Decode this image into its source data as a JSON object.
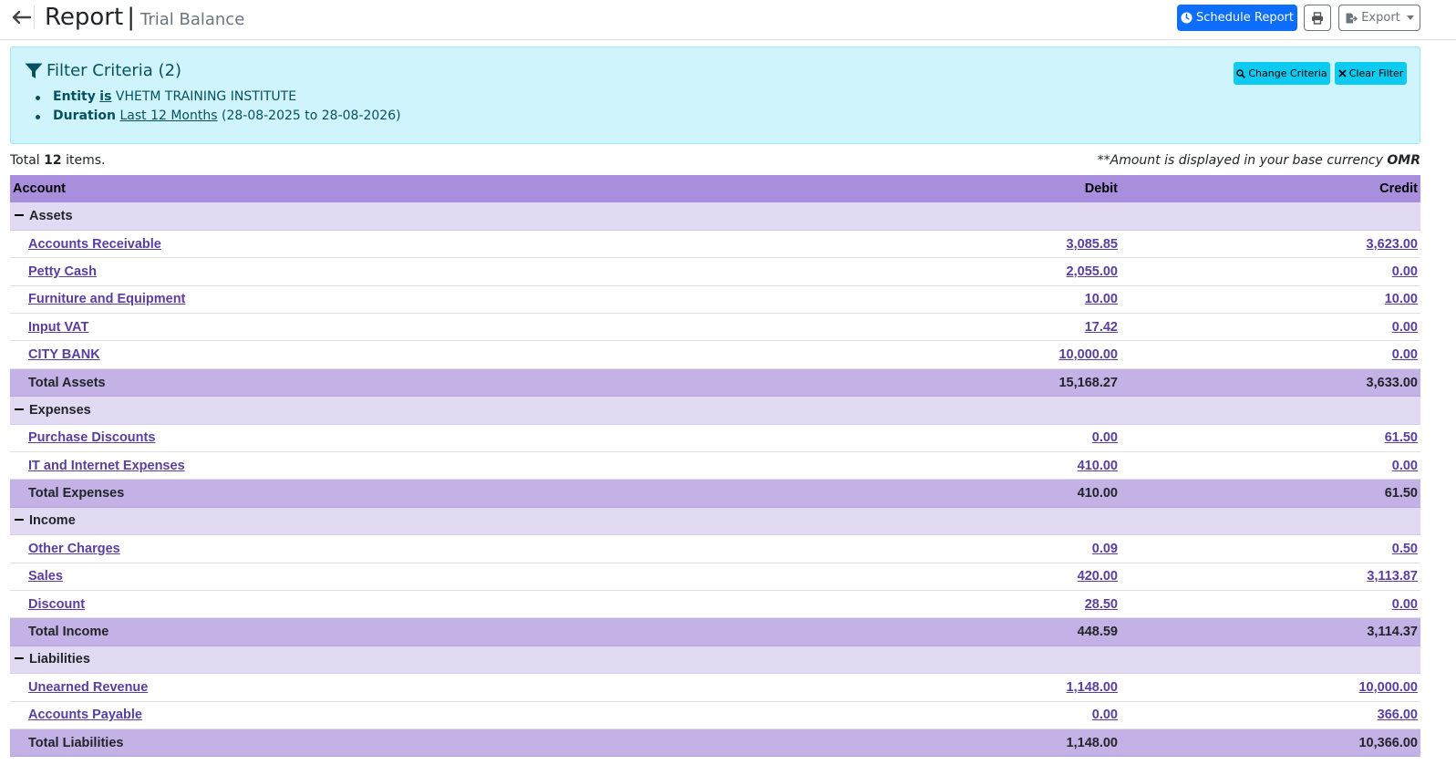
{
  "header": {
    "title": "Report",
    "separator": "|",
    "subtitle": "Trial Balance",
    "schedule_label": "Schedule Report",
    "export_label": "Export"
  },
  "filter": {
    "title": "Filter Criteria (2)",
    "entity_label": "Entity",
    "entity_op": "is",
    "entity_value": "VHETM TRAINING INSTITUTE",
    "duration_label": "Duration",
    "duration_value": "Last 12 Months",
    "duration_range": "(28-08-2025 to 28-08-2026)",
    "change_label": "Change Criteria",
    "clear_label": "Clear Filter"
  },
  "summary": {
    "total_prefix": "Total",
    "total_count": "12",
    "total_suffix": "items.",
    "currency_note": "**Amount is displayed in your base currency",
    "currency": "OMR"
  },
  "table": {
    "headers": {
      "account": "Account",
      "debit": "Debit",
      "credit": "Credit"
    },
    "groups": [
      {
        "name": "Assets",
        "rows": [
          {
            "account": "Accounts Receivable",
            "debit": "3,085.85",
            "credit": "3,623.00"
          },
          {
            "account": "Petty Cash",
            "debit": "2,055.00",
            "credit": "0.00"
          },
          {
            "account": "Furniture and Equipment",
            "debit": "10.00",
            "credit": "10.00"
          },
          {
            "account": "Input VAT",
            "debit": "17.42",
            "credit": "0.00"
          },
          {
            "account": "CITY BANK",
            "debit": "10,000.00",
            "credit": "0.00"
          }
        ],
        "total": {
          "label": "Total Assets",
          "debit": "15,168.27",
          "credit": "3,633.00"
        }
      },
      {
        "name": "Expenses",
        "rows": [
          {
            "account": "Purchase Discounts",
            "debit": "0.00",
            "credit": "61.50"
          },
          {
            "account": "IT and Internet Expenses",
            "debit": "410.00",
            "credit": "0.00"
          }
        ],
        "total": {
          "label": "Total Expenses",
          "debit": "410.00",
          "credit": "61.50"
        }
      },
      {
        "name": "Income",
        "rows": [
          {
            "account": "Other Charges",
            "debit": "0.09",
            "credit": "0.50"
          },
          {
            "account": "Sales",
            "debit": "420.00",
            "credit": "3,113.87"
          },
          {
            "account": "Discount",
            "debit": "28.50",
            "credit": "0.00"
          }
        ],
        "total": {
          "label": "Total Income",
          "debit": "448.59",
          "credit": "3,114.37"
        }
      },
      {
        "name": "Liabilities",
        "rows": [
          {
            "account": "Unearned Revenue",
            "debit": "1,148.00",
            "credit": "10,000.00"
          },
          {
            "account": "Accounts Payable",
            "debit": "0.00",
            "credit": "366.00"
          }
        ],
        "total": {
          "label": "Total Liabilities",
          "debit": "1,148.00",
          "credit": "10,366.00"
        }
      }
    ]
  },
  "icons": {
    "back": "arrow-left-icon",
    "schedule": "clock-icon",
    "print": "printer-icon",
    "export": "export-icon",
    "filter": "filter-icon",
    "change": "search-icon",
    "clear": "close-icon",
    "collapse": "minus-icon"
  },
  "colors": {
    "primary": "#0d6efd",
    "info_bg": "#cff4fc",
    "info_btn": "#0dcaf0",
    "header_purple": "#a98ede",
    "group_purple": "#e2d9f3",
    "total_purple": "#c4b1e6",
    "link_purple": "#5a3e9e"
  }
}
